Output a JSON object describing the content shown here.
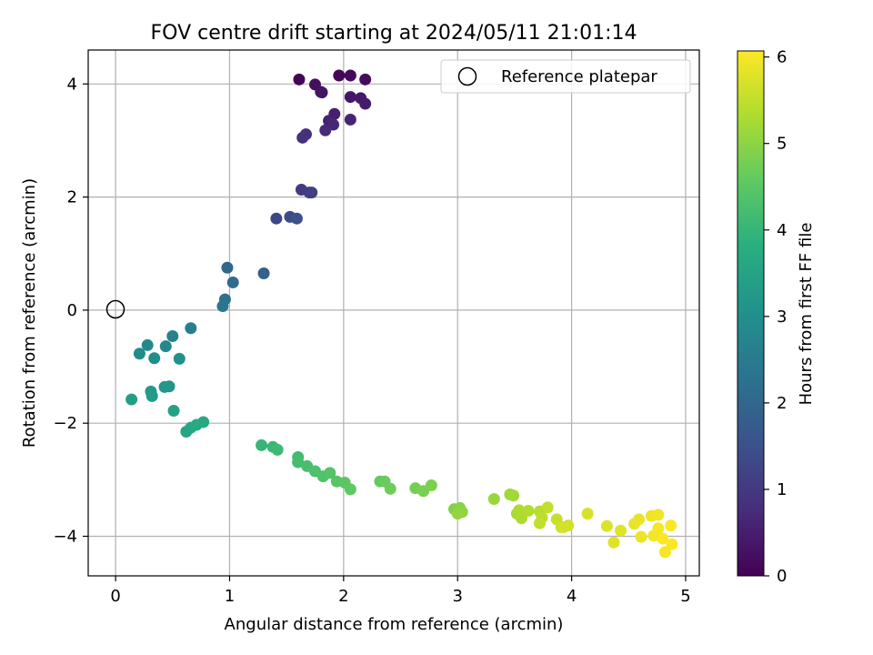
{
  "chart_data": {
    "type": "scatter",
    "title": "FOV centre drift starting at 2024/05/11 21:01:14",
    "xlabel": "Angular distance from reference (arcmin)",
    "ylabel": "Rotation from reference (arcmin)",
    "xlim": [
      -0.24,
      5.12
    ],
    "ylim": [
      -4.7,
      4.6
    ],
    "xticks": [
      0,
      1,
      2,
      3,
      4,
      5
    ],
    "yticks": [
      -4,
      -2,
      0,
      2,
      4
    ],
    "grid": true,
    "legend": {
      "placement": "top-right",
      "entries": [
        "Reference platepar"
      ]
    },
    "reference_point": {
      "label": "Reference platepar",
      "x": 0,
      "y": 0
    },
    "colorbar": {
      "label": "Hours from first FF file",
      "colormap": "viridis",
      "range": [
        0,
        6.07
      ],
      "ticks": [
        0,
        1,
        2,
        3,
        4,
        5,
        6
      ]
    },
    "points": [
      [
        1.61,
        4.08,
        0.05
      ],
      [
        1.96,
        4.15,
        0.1
      ],
      [
        2.06,
        4.15,
        0.15
      ],
      [
        2.19,
        4.08,
        0.18
      ],
      [
        1.75,
        3.99,
        0.22
      ],
      [
        1.8,
        3.86,
        0.28
      ],
      [
        1.81,
        3.85,
        0.31
      ],
      [
        2.06,
        3.77,
        0.36
      ],
      [
        2.15,
        3.75,
        0.4
      ],
      [
        2.19,
        3.65,
        0.45
      ],
      [
        1.92,
        3.47,
        0.52
      ],
      [
        1.87,
        3.35,
        0.58
      ],
      [
        2.06,
        3.37,
        0.62
      ],
      [
        1.91,
        3.28,
        0.68
      ],
      [
        1.84,
        3.18,
        0.72
      ],
      [
        1.67,
        3.11,
        0.8
      ],
      [
        1.64,
        3.05,
        0.85
      ],
      [
        1.63,
        2.13,
        1.05
      ],
      [
        1.7,
        2.08,
        1.1
      ],
      [
        1.72,
        2.08,
        1.15
      ],
      [
        1.41,
        1.62,
        1.3
      ],
      [
        1.53,
        1.65,
        1.4
      ],
      [
        1.59,
        1.62,
        1.5
      ],
      [
        1.3,
        0.65,
        1.85
      ],
      [
        0.98,
        0.75,
        2.0
      ],
      [
        1.03,
        0.49,
        2.1
      ],
      [
        0.96,
        0.19,
        2.25
      ],
      [
        0.94,
        0.07,
        2.35
      ],
      [
        0.66,
        -0.32,
        2.6
      ],
      [
        0.5,
        -0.46,
        2.7
      ],
      [
        0.44,
        -0.64,
        2.8
      ],
      [
        0.28,
        -0.62,
        2.85
      ],
      [
        0.21,
        -0.77,
        2.9
      ],
      [
        0.34,
        -0.85,
        2.95
      ],
      [
        0.56,
        -0.86,
        3.0
      ],
      [
        0.47,
        -1.35,
        3.15
      ],
      [
        0.43,
        -1.36,
        3.2
      ],
      [
        0.31,
        -1.44,
        3.25
      ],
      [
        0.32,
        -1.52,
        3.3
      ],
      [
        0.14,
        -1.58,
        3.35
      ],
      [
        0.51,
        -1.78,
        3.45
      ],
      [
        0.62,
        -2.15,
        3.55
      ],
      [
        0.66,
        -2.08,
        3.6
      ],
      [
        0.71,
        -2.03,
        3.65
      ],
      [
        0.77,
        -1.98,
        3.7
      ],
      [
        1.28,
        -2.39,
        4.0
      ],
      [
        1.38,
        -2.42,
        4.05
      ],
      [
        1.42,
        -2.47,
        4.1
      ],
      [
        1.6,
        -2.6,
        4.15
      ],
      [
        1.6,
        -2.69,
        4.2
      ],
      [
        1.68,
        -2.76,
        4.25
      ],
      [
        1.75,
        -2.85,
        4.3
      ],
      [
        1.82,
        -2.94,
        4.35
      ],
      [
        1.88,
        -2.88,
        4.4
      ],
      [
        1.94,
        -3.03,
        4.45
      ],
      [
        2.01,
        -3.05,
        4.5
      ],
      [
        2.06,
        -3.17,
        4.55
      ],
      [
        2.32,
        -3.03,
        4.6
      ],
      [
        2.36,
        -3.03,
        4.65
      ],
      [
        2.41,
        -3.16,
        4.7
      ],
      [
        2.63,
        -3.15,
        4.75
      ],
      [
        2.7,
        -3.2,
        4.8
      ],
      [
        2.77,
        -3.1,
        4.85
      ],
      [
        2.97,
        -3.52,
        4.9
      ],
      [
        3.02,
        -3.5,
        4.95
      ],
      [
        3.04,
        -3.57,
        5.0
      ],
      [
        3.0,
        -3.6,
        5.05
      ],
      [
        3.32,
        -3.34,
        5.1
      ],
      [
        3.46,
        -3.26,
        5.15
      ],
      [
        3.49,
        -3.28,
        5.2
      ],
      [
        3.52,
        -3.6,
        5.25
      ],
      [
        3.56,
        -3.68,
        5.3
      ],
      [
        3.54,
        -3.54,
        5.32
      ],
      [
        3.62,
        -3.55,
        5.35
      ],
      [
        3.72,
        -3.56,
        5.4
      ],
      [
        3.74,
        -3.67,
        5.45
      ],
      [
        3.72,
        -3.77,
        5.5
      ],
      [
        3.79,
        -3.49,
        5.52
      ],
      [
        3.87,
        -3.7,
        5.55
      ],
      [
        3.91,
        -3.84,
        5.6
      ],
      [
        3.97,
        -3.81,
        5.65
      ],
      [
        3.93,
        -3.84,
        5.68
      ],
      [
        4.14,
        -3.6,
        5.7
      ],
      [
        4.31,
        -3.82,
        5.75
      ],
      [
        4.37,
        -4.11,
        5.78
      ],
      [
        4.43,
        -3.9,
        5.8
      ],
      [
        4.55,
        -3.78,
        5.85
      ],
      [
        4.59,
        -3.7,
        5.88
      ],
      [
        4.61,
        -4.01,
        5.9
      ],
      [
        4.7,
        -3.64,
        5.93
      ],
      [
        4.76,
        -3.62,
        5.95
      ],
      [
        4.72,
        -3.99,
        5.97
      ],
      [
        4.76,
        -3.86,
        6.0
      ],
      [
        4.82,
        -4.28,
        6.02
      ],
      [
        4.87,
        -3.81,
        6.04
      ],
      [
        4.88,
        -4.14,
        6.05
      ],
      [
        4.8,
        -4.04,
        6.06
      ]
    ]
  }
}
